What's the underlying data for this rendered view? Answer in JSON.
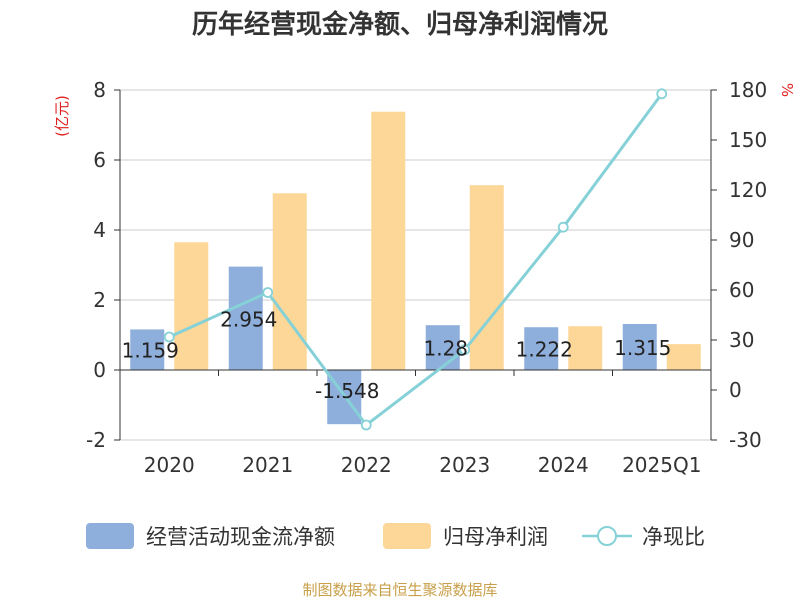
{
  "chart_data": {
    "type": "bar",
    "title": "历年经营现金净额、归母净利润情况",
    "categories": [
      "2020",
      "2021",
      "2022",
      "2023",
      "2024",
      "2025Q1"
    ],
    "series": [
      {
        "name": "经营活动现金流净额",
        "kind": "bar",
        "axis": "left",
        "color": "#8eaedb",
        "values": [
          1.159,
          2.954,
          -1.548,
          1.28,
          1.222,
          1.315
        ],
        "labels": [
          "1.159",
          "2.954",
          "-1.548",
          "1.28",
          "1.222",
          "1.315"
        ]
      },
      {
        "name": "归母净利润",
        "kind": "bar",
        "axis": "left",
        "color": "#fdd797",
        "values": [
          3.65,
          5.05,
          7.38,
          5.28,
          1.25,
          0.74
        ]
      },
      {
        "name": "净现比",
        "kind": "line",
        "axis": "right",
        "color": "#86d1d7",
        "values": [
          31.8,
          58.5,
          -21.0,
          24.2,
          97.7,
          177.7
        ]
      }
    ],
    "y_left": {
      "unit": "(亿元)",
      "min": -2,
      "max": 8,
      "ticks": [
        "-2",
        "0",
        "2",
        "4",
        "6",
        "8"
      ]
    },
    "y_right": {
      "unit": "%",
      "min": -30,
      "max": 180,
      "ticks": [
        "-30",
        "0",
        "30",
        "60",
        "90",
        "120",
        "150",
        "180"
      ]
    },
    "grid": true,
    "legend_position": "bottom",
    "source": "制图数据来自恒生聚源数据库",
    "colors": {
      "axis": "#333333",
      "grid": "#cccccc",
      "unit": "#e02020",
      "source": "#c8a04a"
    }
  }
}
